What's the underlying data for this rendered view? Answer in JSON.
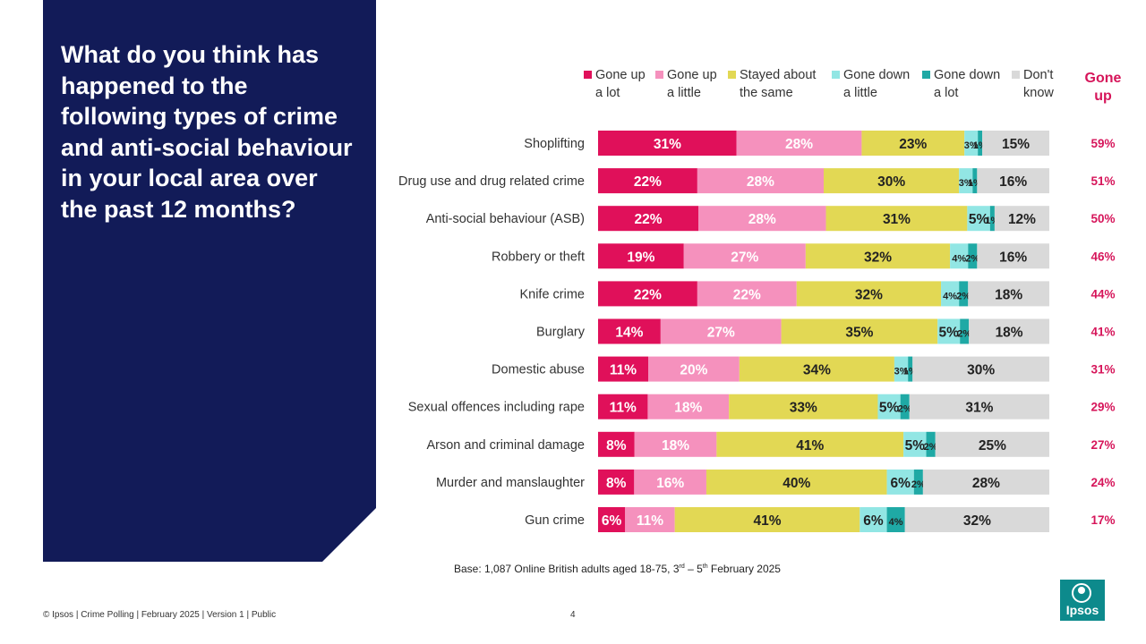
{
  "title": "What do you think has happened to the following types of crime and anti-social behaviour in your local area over the past 12 months?",
  "gone_up_header": "Gone up",
  "base_note": {
    "prefix": "Base: 1,087 Online British adults aged 18-75, 3",
    "sup1": "rd",
    "mid": " – 5",
    "sup2": "th",
    "suffix": " February 2025"
  },
  "footer": "© Ipsos | Crime Polling | February 2025 | Version 1 | Public",
  "page_number": "4",
  "logo_text": "Ipsos",
  "colors": {
    "panel": "#121b58",
    "gone_up_text": "#d6155a"
  },
  "legend": [
    {
      "line1": "Gone up",
      "line2": "a lot",
      "color": "#e0105a"
    },
    {
      "line1": "Gone up",
      "line2": "a little",
      "color": "#f591bd"
    },
    {
      "line1": "Stayed about",
      "line2": "the same",
      "color": "#e2d854"
    },
    {
      "line1": "Gone down",
      "line2": "a little",
      "color": "#92e6e4"
    },
    {
      "line1": "Gone down",
      "line2": "a lot",
      "color": "#1fa9a5"
    },
    {
      "line1": "Don't",
      "line2": "know",
      "color": "#d9d9d9"
    }
  ],
  "chart_data": {
    "type": "bar",
    "orientation": "horizontal",
    "stacked": true,
    "unit": "%",
    "categories": [
      "Shoplifting",
      "Drug use and drug related crime",
      "Anti-social behaviour (ASB)",
      "Robbery or theft",
      "Knife crime",
      "Burglary",
      "Domestic abuse",
      "Sexual offences including rape",
      "Arson and criminal damage",
      "Murder and manslaughter",
      "Gun crime"
    ],
    "series": [
      {
        "name": "Gone up a lot",
        "color": "#e0105a",
        "label_color": "#ffffff",
        "values": [
          31,
          22,
          22,
          19,
          22,
          14,
          11,
          11,
          8,
          8,
          6
        ]
      },
      {
        "name": "Gone up a little",
        "color": "#f591bd",
        "label_color": "#ffffff",
        "values": [
          28,
          28,
          28,
          27,
          22,
          27,
          20,
          18,
          18,
          16,
          11
        ]
      },
      {
        "name": "Stayed about the same",
        "color": "#e2d854",
        "label_color": "#222222",
        "values": [
          23,
          30,
          31,
          32,
          32,
          35,
          34,
          33,
          41,
          40,
          41
        ]
      },
      {
        "name": "Gone down a little",
        "color": "#92e6e4",
        "label_color": "#222222",
        "values": [
          3,
          3,
          5,
          4,
          4,
          5,
          3,
          5,
          5,
          6,
          6
        ]
      },
      {
        "name": "Gone down a lot",
        "color": "#1fa9a5",
        "label_color": "#222222",
        "values": [
          1,
          1,
          1,
          2,
          2,
          2,
          1,
          2,
          2,
          2,
          4
        ]
      },
      {
        "name": "Don't know",
        "color": "#d9d9d9",
        "label_color": "#222222",
        "values": [
          15,
          16,
          12,
          16,
          18,
          18,
          30,
          31,
          25,
          28,
          32
        ]
      }
    ],
    "gone_up_totals": [
      59,
      51,
      50,
      46,
      44,
      41,
      31,
      29,
      27,
      24,
      17
    ]
  }
}
